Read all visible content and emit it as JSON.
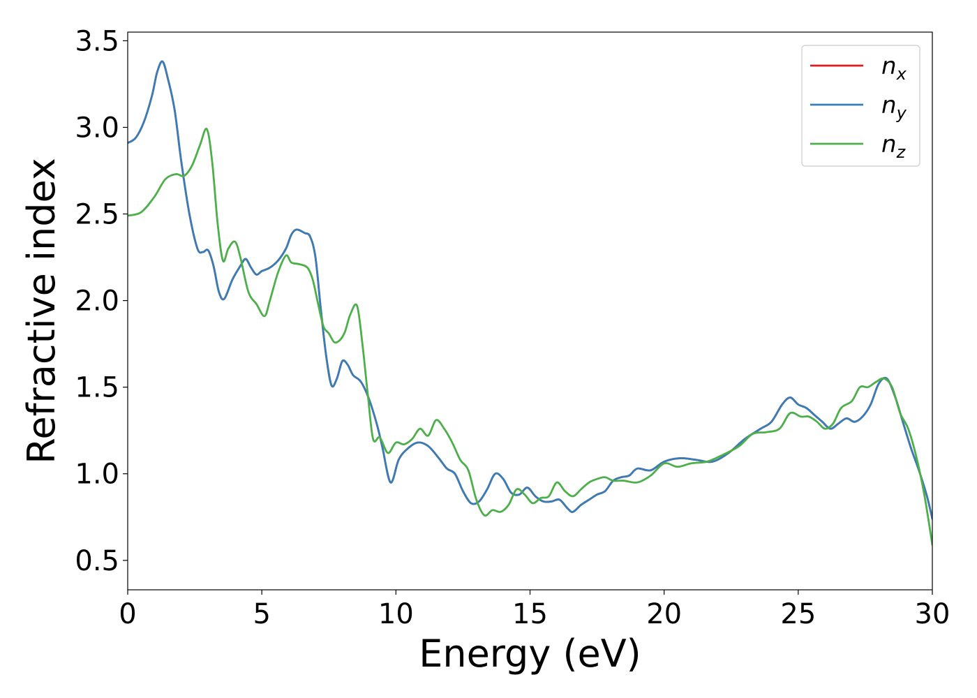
{
  "chart_data": {
    "type": "line",
    "title": "",
    "xlabel": "Energy (eV)",
    "ylabel": "Refractive index",
    "xlim": [
      0,
      30
    ],
    "ylim": [
      0.33,
      3.55
    ],
    "xticks": [
      0,
      5,
      10,
      15,
      20,
      25,
      30
    ],
    "xtick_labels": [
      "0",
      "5",
      "10",
      "15",
      "20",
      "25",
      "30"
    ],
    "yticks": [
      0.5,
      1.0,
      1.5,
      2.0,
      2.5,
      3.0,
      3.5
    ],
    "ytick_labels": [
      "0.5",
      "1.0",
      "1.5",
      "2.0",
      "2.5",
      "3.0",
      "3.5"
    ],
    "grid": false,
    "legend": "top-right",
    "series": [
      {
        "name": "n_x",
        "label_base": "n",
        "label_sub": "x",
        "color": "#e41a1c",
        "x": [
          0,
          0.3,
          0.6,
          0.9,
          1.1,
          1.3,
          1.5,
          1.75,
          2.0,
          2.3,
          2.6,
          2.8,
          3.0,
          3.2,
          3.4,
          3.6,
          3.9,
          4.2,
          4.4,
          4.6,
          4.8,
          5.0,
          5.3,
          5.6,
          5.9,
          6.1,
          6.3,
          6.6,
          6.8,
          7.0,
          7.2,
          7.4,
          7.6,
          7.8,
          8.0,
          8.2,
          8.4,
          8.7,
          9.0,
          9.3,
          9.5,
          9.8,
          10.1,
          10.4,
          10.8,
          11.2,
          11.6,
          11.9,
          12.2,
          12.5,
          12.8,
          13.1,
          13.4,
          13.7,
          14.0,
          14.3,
          14.6,
          14.9,
          15.2,
          15.5,
          15.8,
          16.1,
          16.4,
          16.6,
          16.9,
          17.2,
          17.5,
          17.8,
          18.1,
          18.4,
          18.7,
          19.0,
          19.5,
          20.0,
          20.6,
          21.2,
          21.8,
          22.4,
          23.0,
          23.6,
          24.0,
          24.4,
          24.7,
          25.0,
          25.3,
          25.6,
          25.9,
          26.2,
          26.5,
          26.8,
          27.1,
          27.4,
          27.7,
          28.0,
          28.3,
          28.6,
          28.9,
          29.2,
          29.5,
          29.8,
          30.0
        ],
        "y": [
          2.91,
          2.94,
          3.03,
          3.18,
          3.32,
          3.38,
          3.28,
          3.1,
          2.8,
          2.5,
          2.3,
          2.28,
          2.29,
          2.2,
          2.05,
          2.01,
          2.12,
          2.2,
          2.24,
          2.19,
          2.15,
          2.17,
          2.19,
          2.23,
          2.3,
          2.38,
          2.41,
          2.39,
          2.37,
          2.25,
          1.95,
          1.68,
          1.51,
          1.55,
          1.65,
          1.63,
          1.57,
          1.53,
          1.43,
          1.28,
          1.15,
          0.95,
          1.08,
          1.14,
          1.18,
          1.16,
          1.09,
          1.03,
          1.0,
          0.9,
          0.83,
          0.84,
          0.91,
          1.0,
          0.97,
          0.89,
          0.88,
          0.92,
          0.87,
          0.84,
          0.84,
          0.85,
          0.8,
          0.78,
          0.82,
          0.85,
          0.88,
          0.9,
          0.96,
          0.98,
          0.99,
          1.03,
          1.02,
          1.07,
          1.09,
          1.08,
          1.07,
          1.12,
          1.2,
          1.26,
          1.3,
          1.4,
          1.44,
          1.4,
          1.38,
          1.34,
          1.3,
          1.26,
          1.29,
          1.32,
          1.3,
          1.33,
          1.4,
          1.52,
          1.55,
          1.45,
          1.3,
          1.15,
          1.02,
          0.87,
          0.74
        ]
      },
      {
        "name": "n_y",
        "label_base": "n",
        "label_sub": "y",
        "color": "#377eb8",
        "x": [
          0,
          0.3,
          0.6,
          0.9,
          1.1,
          1.3,
          1.5,
          1.75,
          2.0,
          2.3,
          2.6,
          2.8,
          3.0,
          3.2,
          3.4,
          3.6,
          3.9,
          4.2,
          4.4,
          4.6,
          4.8,
          5.0,
          5.3,
          5.6,
          5.9,
          6.1,
          6.3,
          6.6,
          6.8,
          7.0,
          7.2,
          7.4,
          7.6,
          7.8,
          8.0,
          8.2,
          8.4,
          8.7,
          9.0,
          9.3,
          9.5,
          9.8,
          10.1,
          10.4,
          10.8,
          11.2,
          11.6,
          11.9,
          12.2,
          12.5,
          12.8,
          13.1,
          13.4,
          13.7,
          14.0,
          14.3,
          14.6,
          14.9,
          15.2,
          15.5,
          15.8,
          16.1,
          16.4,
          16.6,
          16.9,
          17.2,
          17.5,
          17.8,
          18.1,
          18.4,
          18.7,
          19.0,
          19.5,
          20.0,
          20.6,
          21.2,
          21.8,
          22.4,
          23.0,
          23.6,
          24.0,
          24.4,
          24.7,
          25.0,
          25.3,
          25.6,
          25.9,
          26.2,
          26.5,
          26.8,
          27.1,
          27.4,
          27.7,
          28.0,
          28.3,
          28.6,
          28.9,
          29.2,
          29.5,
          29.8,
          30.0
        ],
        "y": [
          2.91,
          2.94,
          3.03,
          3.18,
          3.32,
          3.38,
          3.28,
          3.1,
          2.8,
          2.5,
          2.3,
          2.28,
          2.29,
          2.2,
          2.05,
          2.01,
          2.12,
          2.2,
          2.24,
          2.19,
          2.15,
          2.17,
          2.19,
          2.23,
          2.3,
          2.38,
          2.41,
          2.39,
          2.37,
          2.25,
          1.95,
          1.68,
          1.51,
          1.55,
          1.65,
          1.63,
          1.57,
          1.53,
          1.43,
          1.28,
          1.15,
          0.95,
          1.08,
          1.14,
          1.18,
          1.16,
          1.09,
          1.03,
          1.0,
          0.9,
          0.83,
          0.84,
          0.91,
          1.0,
          0.97,
          0.89,
          0.88,
          0.92,
          0.87,
          0.84,
          0.84,
          0.85,
          0.8,
          0.78,
          0.82,
          0.85,
          0.88,
          0.9,
          0.96,
          0.98,
          0.99,
          1.03,
          1.02,
          1.07,
          1.09,
          1.08,
          1.07,
          1.12,
          1.2,
          1.26,
          1.3,
          1.4,
          1.44,
          1.4,
          1.38,
          1.34,
          1.3,
          1.26,
          1.29,
          1.32,
          1.3,
          1.33,
          1.4,
          1.52,
          1.55,
          1.45,
          1.3,
          1.15,
          1.02,
          0.87,
          0.74
        ]
      },
      {
        "name": "n_z",
        "label_base": "n",
        "label_sub": "z",
        "color": "#4daf4a",
        "x": [
          0,
          0.5,
          1.0,
          1.4,
          1.8,
          2.1,
          2.4,
          2.7,
          2.95,
          3.15,
          3.35,
          3.55,
          3.75,
          4.0,
          4.2,
          4.5,
          4.8,
          5.1,
          5.3,
          5.6,
          5.9,
          6.1,
          6.4,
          6.7,
          6.9,
          7.1,
          7.3,
          7.5,
          7.7,
          7.9,
          8.1,
          8.3,
          8.55,
          8.75,
          8.95,
          9.15,
          9.4,
          9.7,
          10.0,
          10.3,
          10.6,
          10.9,
          11.2,
          11.5,
          11.8,
          12.1,
          12.4,
          12.7,
          13.0,
          13.3,
          13.6,
          13.9,
          14.2,
          14.5,
          14.8,
          15.1,
          15.4,
          15.7,
          16.0,
          16.3,
          16.6,
          16.9,
          17.2,
          17.5,
          17.8,
          18.1,
          18.5,
          19.0,
          19.5,
          20.0,
          20.5,
          21.0,
          21.6,
          22.2,
          22.8,
          23.3,
          23.8,
          24.3,
          24.7,
          25.1,
          25.4,
          25.7,
          26.0,
          26.3,
          26.6,
          27.0,
          27.3,
          27.6,
          27.9,
          28.2,
          28.5,
          28.8,
          29.1,
          29.4,
          29.7,
          30.0
        ],
        "y": [
          2.49,
          2.51,
          2.6,
          2.7,
          2.73,
          2.72,
          2.78,
          2.9,
          2.99,
          2.8,
          2.45,
          2.23,
          2.3,
          2.34,
          2.25,
          2.05,
          1.98,
          1.91,
          2.0,
          2.16,
          2.26,
          2.22,
          2.21,
          2.19,
          2.12,
          1.98,
          1.85,
          1.81,
          1.76,
          1.77,
          1.82,
          1.92,
          1.97,
          1.75,
          1.46,
          1.2,
          1.21,
          1.12,
          1.18,
          1.17,
          1.2,
          1.26,
          1.22,
          1.31,
          1.26,
          1.18,
          1.08,
          1.02,
          0.85,
          0.76,
          0.79,
          0.78,
          0.82,
          0.91,
          0.88,
          0.83,
          0.86,
          0.87,
          0.95,
          0.9,
          0.87,
          0.91,
          0.95,
          0.97,
          0.98,
          0.96,
          0.96,
          0.95,
          0.99,
          1.06,
          1.04,
          1.06,
          1.07,
          1.11,
          1.16,
          1.23,
          1.24,
          1.26,
          1.35,
          1.33,
          1.33,
          1.3,
          1.26,
          1.29,
          1.38,
          1.42,
          1.5,
          1.5,
          1.53,
          1.55,
          1.5,
          1.35,
          1.26,
          1.1,
          0.88,
          0.59
        ]
      }
    ]
  }
}
